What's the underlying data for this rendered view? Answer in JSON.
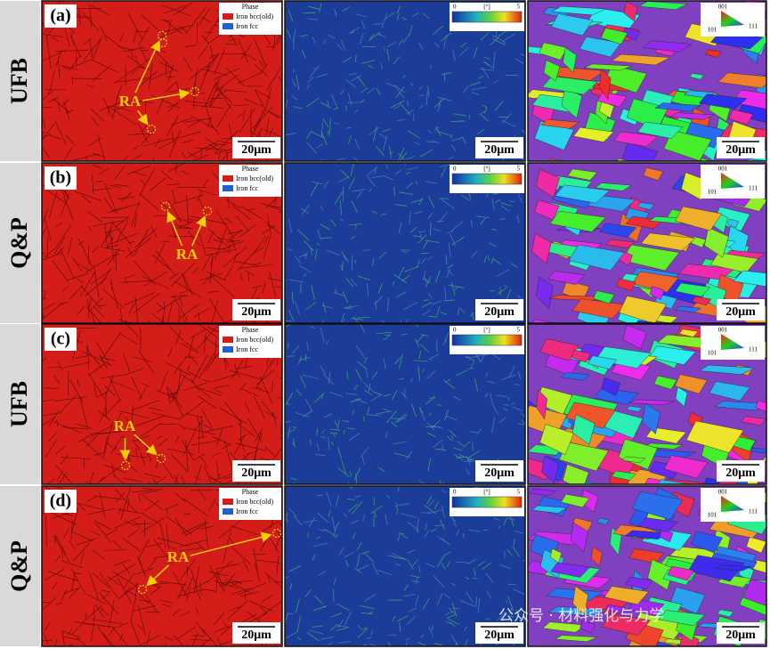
{
  "rows": [
    {
      "sample": "UFB",
      "panel": "(a)",
      "annotation": "RA"
    },
    {
      "sample": "Q&P",
      "panel": "(b)",
      "annotation": "RA"
    },
    {
      "sample": "UFB",
      "panel": "(c)",
      "annotation": "RA"
    },
    {
      "sample": "Q&P",
      "panel": "(d)",
      "annotation": "RA"
    }
  ],
  "phase_legend": {
    "title": "Phase",
    "items": [
      "Iron bcc(old)",
      "Iron fcc"
    ]
  },
  "kam_legend": {
    "min": 0,
    "unit": "[°]",
    "max": 5
  },
  "ipf_key": {
    "top": "001",
    "left": "101",
    "right": "111"
  },
  "scale_bar": "20μm",
  "watermark": "公众号 · 材料强化与力学"
}
